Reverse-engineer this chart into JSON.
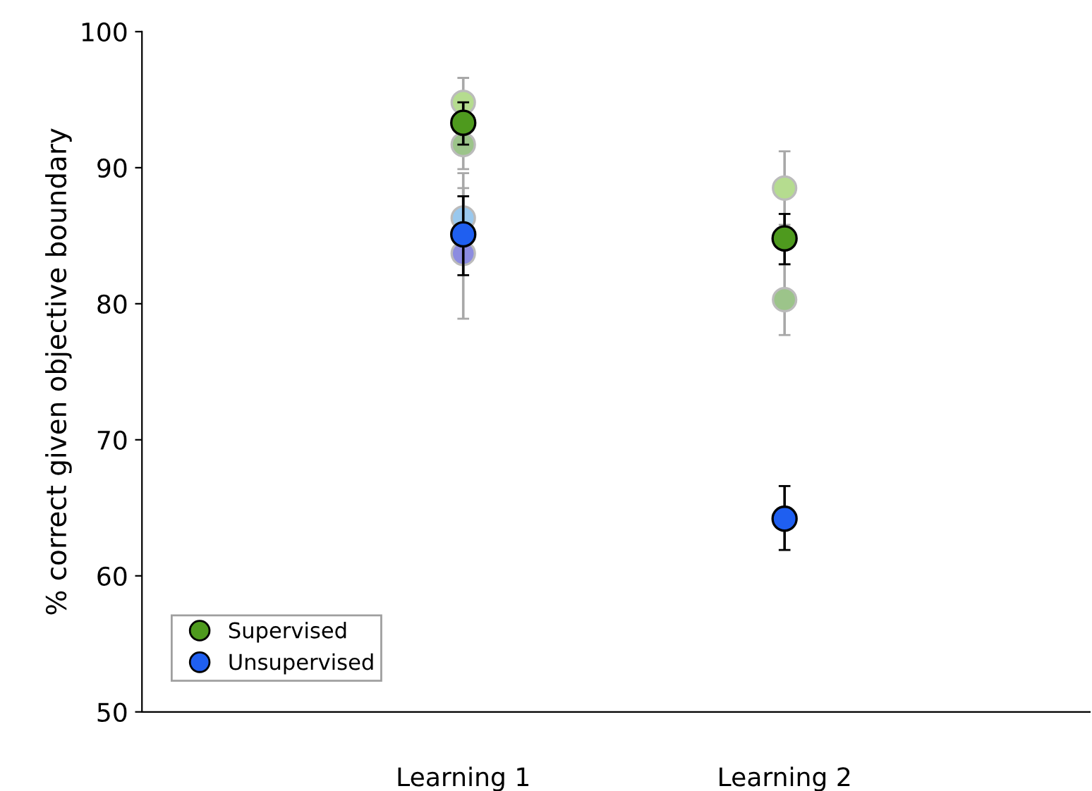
{
  "chart_data": {
    "type": "scatter",
    "ylabel": "% correct given objective boundary",
    "categories": [
      "Learning 1",
      "Learning 2"
    ],
    "ylim": [
      50,
      100
    ],
    "yticks": [
      50,
      60,
      70,
      80,
      90,
      100
    ],
    "grid": false,
    "legend": "bottom left",
    "marker": "circle",
    "series": [
      {
        "color": "#b5dc8f",
        "values": [
          94.8,
          88.5
        ],
        "errors": [
          1.8,
          2.7
        ]
      },
      {
        "color": "#9cc48a",
        "values": [
          91.7,
          80.3
        ],
        "errors": [
          1.8,
          2.6
        ]
      },
      {
        "color": "#99c8ee",
        "values": [
          86.3,
          null
        ],
        "errors": [
          3.3,
          null
        ]
      },
      {
        "color": "#8c8ce0",
        "values": [
          83.7,
          null
        ],
        "errors": [
          4.8,
          null
        ]
      },
      {
        "name": "Supervised",
        "color": "#4e9a1e",
        "values": [
          93.3,
          84.8
        ],
        "errors": [
          [
            91.7,
            94.8
          ],
          [
            82.9,
            86.6
          ]
        ]
      },
      {
        "name": "Unsupervised",
        "color": "#1f5ff0",
        "values": [
          85.1,
          64.2
        ],
        "errors": [
          [
            82.1,
            87.9
          ],
          [
            61.9,
            66.6
          ]
        ]
      }
    ]
  }
}
